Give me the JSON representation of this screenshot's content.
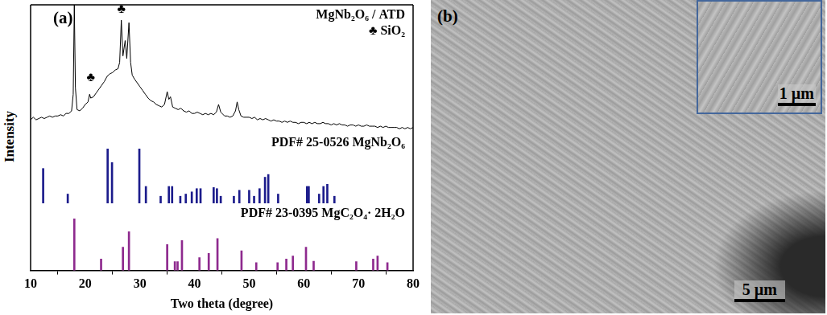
{
  "chart_data": [
    {
      "type": "line",
      "y_label": "Intensity",
      "xlim": [
        10,
        80
      ],
      "ylim": [
        0,
        100
      ],
      "tick_labels": false,
      "legend": "upper right",
      "x": [
        10,
        10.5,
        11,
        11.5,
        12,
        12.5,
        13,
        13.5,
        14,
        14.5,
        15,
        15.5,
        16,
        16.5,
        17,
        17.5,
        17.8,
        18.0,
        18.2,
        18.5,
        19,
        19.5,
        20,
        20.5,
        20.8,
        21,
        21.5,
        22,
        22.5,
        23,
        23.5,
        24,
        24.5,
        25,
        25.5,
        26,
        26.3,
        26.6,
        26.9,
        27.3,
        27.6,
        28.0,
        28.3,
        28.6,
        29,
        29.5,
        30,
        30.5,
        31,
        31.5,
        32,
        32.5,
        33,
        33.5,
        34,
        34.5,
        35,
        35.3,
        35.6,
        36,
        36.5,
        37,
        37.5,
        38,
        38.5,
        39,
        39.5,
        40,
        40.5,
        41,
        41.5,
        42,
        42.5,
        43,
        43.5,
        44,
        44.4,
        44.8,
        45.5,
        46,
        46.5,
        47,
        47.5,
        47.8,
        48.1,
        48.5,
        49,
        49.5,
        50,
        50.5,
        51,
        51.5,
        52,
        52.5,
        53,
        53.5,
        54,
        54.5,
        55,
        55.5,
        56,
        56.5,
        57,
        57.5,
        58,
        58.5,
        59,
        59.5,
        60,
        60.5,
        61,
        61.5,
        62,
        62.5,
        63,
        63.5,
        64,
        64.5,
        65,
        65.5,
        66,
        66.5,
        67,
        67.5,
        68,
        68.5,
        69,
        69.5,
        70,
        70.5,
        71,
        71.5,
        72,
        72.5,
        73,
        73.5,
        74,
        74.5,
        75,
        75.5,
        76,
        76.5,
        77,
        77.5,
        78,
        78.5,
        79,
        79.5,
        80
      ],
      "series": [
        {
          "name": "MgNb₂O₆ / ATD",
          "color": "#000000",
          "values": [
            10,
            12,
            10,
            11,
            12,
            11,
            12,
            13,
            12,
            13,
            13,
            14,
            13,
            15,
            15,
            17,
            30,
            100,
            35,
            18,
            17,
            19,
            22,
            24,
            30,
            27,
            28,
            31,
            34,
            37,
            40,
            44,
            46,
            47,
            49,
            50,
            55,
            88,
            60,
            72,
            58,
            86,
            55,
            45,
            42,
            39,
            36,
            33,
            30,
            27,
            25,
            24,
            22,
            21,
            20,
            22,
            32,
            26,
            28,
            20,
            19,
            18,
            19,
            17,
            16,
            17,
            15,
            15,
            16,
            15,
            14,
            15,
            14,
            15,
            14,
            16,
            22,
            16,
            13,
            13,
            12,
            13,
            17,
            24,
            18,
            13,
            12,
            12,
            12,
            11,
            12,
            10,
            11,
            10,
            11,
            10,
            9,
            10,
            9,
            9,
            8,
            9,
            8,
            9,
            8,
            8,
            7,
            8,
            8,
            7,
            8,
            7,
            8,
            7,
            7,
            8,
            7,
            7,
            6,
            7,
            6,
            7,
            6,
            6,
            5,
            6,
            6,
            5,
            6,
            5,
            5,
            6,
            5,
            5,
            5,
            4,
            5,
            4,
            5,
            4,
            4,
            4,
            4,
            3,
            4,
            3,
            4,
            3,
            4
          ]
        }
      ],
      "annotations": [
        {
          "text": "♣ SiO₂"
        },
        {
          "text": "♣",
          "x": 21.0,
          "y": 38
        },
        {
          "text": "♣",
          "x": 26.6,
          "y": 91
        }
      ]
    },
    {
      "type": "bar",
      "xlim": [
        10,
        80
      ],
      "ylim": [
        0,
        130
      ],
      "tick_labels": false,
      "legend": "upper right",
      "x": [
        12.3,
        16.8,
        24.1,
        24.9,
        29.9,
        31.1,
        33.8,
        35.3,
        35.9,
        37.4,
        38.4,
        39.5,
        40.4,
        41.1,
        43.5,
        44.1,
        44.8,
        47.2,
        48.2,
        50.0,
        50.9,
        51.9,
        52.9,
        53.5,
        55.3,
        60.6,
        60.9,
        62.8,
        63.6,
        64.3,
        65.6
      ],
      "series": [
        {
          "name": "PDF# 25-0526 MgNb₂O₆",
          "color": "#1c1c8c",
          "values": [
            64,
            17,
            100,
            75,
            100,
            31,
            13,
            31,
            31,
            13,
            17,
            21,
            27,
            27,
            29,
            27,
            13,
            13,
            24,
            24,
            13,
            27,
            48,
            53,
            17,
            31,
            31,
            17,
            31,
            35,
            13
          ]
        }
      ]
    },
    {
      "type": "bar",
      "x_label": "Two theta (degree)",
      "xlim": [
        10,
        80
      ],
      "xticks": [
        10,
        20,
        30,
        40,
        50,
        60,
        70,
        80
      ],
      "ylim": [
        0,
        130
      ],
      "tick_labels": "x",
      "legend": "upper right",
      "x": [
        18.0,
        22.9,
        26.9,
        28.0,
        35.0,
        36.4,
        36.9,
        37.7,
        40.9,
        42.6,
        44.2,
        48.6,
        51.3,
        55.2,
        56.8,
        58.0,
        60.4,
        61.8,
        69.6,
        72.7,
        73.5,
        75.3
      ],
      "series": [
        {
          "name": "PDF# 23-0395 MgC₂O₄· 2H₂O",
          "color": "#8e2a8e",
          "values": [
            100,
            22,
            45,
            75,
            50,
            17,
            17,
            58,
            25,
            33,
            62,
            38,
            15,
            15,
            22,
            28,
            45,
            18,
            17,
            22,
            28,
            15
          ]
        }
      ]
    }
  ],
  "figure": {
    "a": {
      "label": "(a)"
    },
    "b": {
      "label": "(b)",
      "scale_bar": "5 µm",
      "inset_scale_bar": "1 µm"
    }
  }
}
